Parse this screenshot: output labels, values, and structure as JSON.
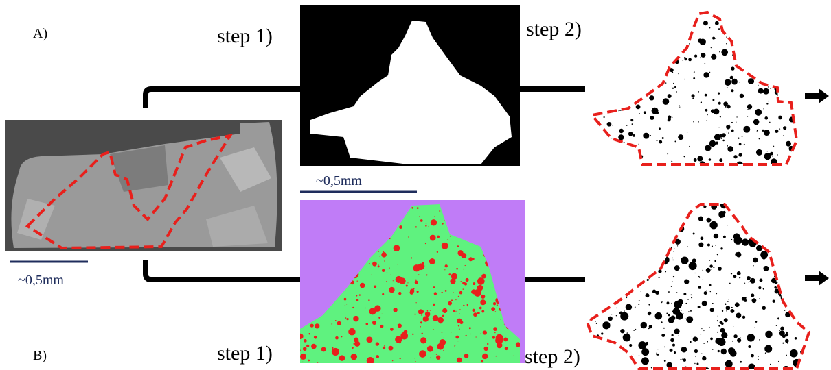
{
  "panel_a": {
    "label": "A)",
    "step1": "step 1)",
    "step2": "step 2)",
    "scale": "~0,5mm"
  },
  "panel_b": {
    "label": "B)",
    "step1": "step 1)",
    "step2": "step 2)"
  },
  "source_scale": "~0,5mm"
}
